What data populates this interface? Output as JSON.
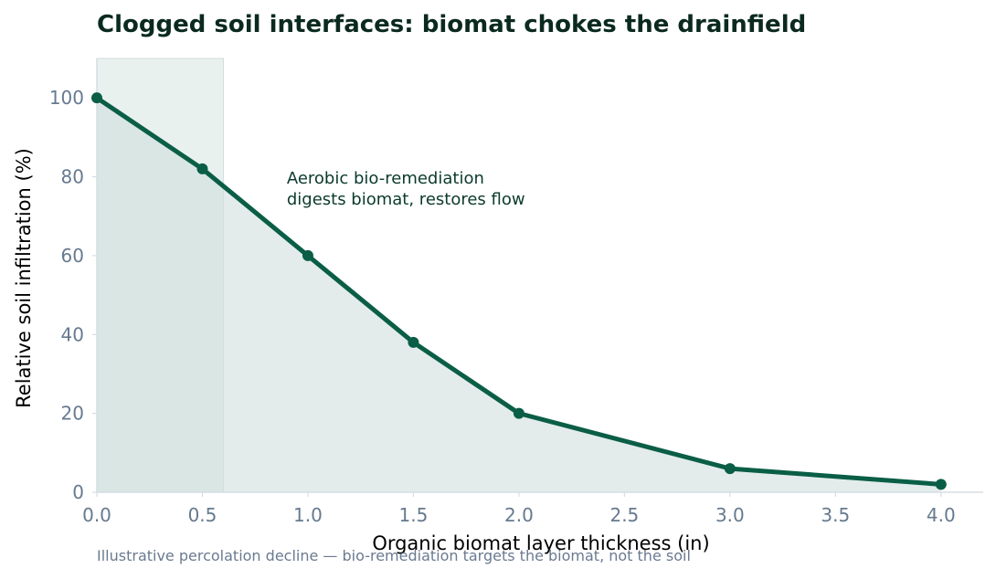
{
  "chart_data": {
    "type": "line",
    "title": "Clogged soil interfaces: biomat chokes the drainfield",
    "xlabel": "Organic biomat layer thickness (in)",
    "ylabel": "Relative soil infiltration (%)",
    "caption": "Illustrative percolation decline — bio-remediation targets the biomat, not the soil",
    "annotation": [
      "Aerobic bio-remediation",
      "digests biomat, restores flow"
    ],
    "x": [
      0.0,
      0.5,
      1.0,
      1.5,
      2.0,
      3.0,
      4.0
    ],
    "series": [
      {
        "values": [
          100,
          82,
          60,
          38,
          20,
          6,
          2
        ]
      }
    ],
    "xlim": [
      0,
      4.2
    ],
    "ylim": [
      0,
      110
    ],
    "x_ticks": [
      0.0,
      0.5,
      1.0,
      1.5,
      2.0,
      2.5,
      3.0,
      3.5,
      4.0
    ],
    "x_tick_labels": [
      "0.0",
      "0.5",
      "1.0",
      "1.5",
      "2.0",
      "2.5",
      "3.0",
      "3.5",
      "4.0"
    ],
    "y_ticks": [
      0,
      20,
      40,
      60,
      80,
      100
    ],
    "y_tick_labels": [
      "0",
      "20",
      "40",
      "60",
      "80",
      "100"
    ],
    "highlight_band_x": [
      0,
      0.6
    ],
    "annotation_anchor": {
      "x": 0.9,
      "y": 73
    },
    "grid": false,
    "area_fill": true,
    "colors": {
      "line": "#0a5e45",
      "area": "#e3ecea",
      "band": "#cfdfdb",
      "axis": "#d5dde3"
    }
  }
}
